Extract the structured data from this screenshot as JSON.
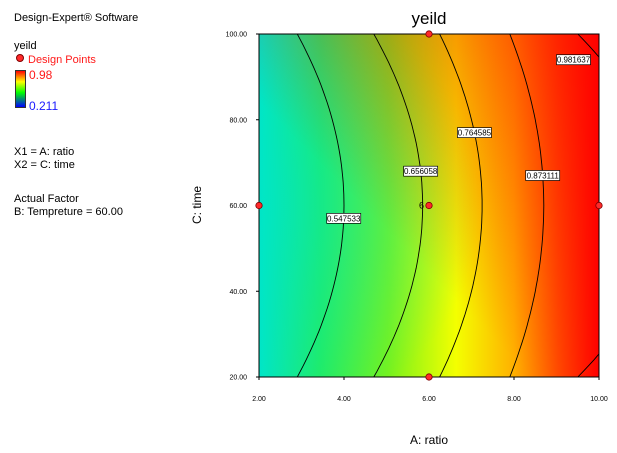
{
  "sidebar": {
    "software": "Design-Expert® Software",
    "response_name": "yeild",
    "legend_label": "Design Points",
    "colorbar_high": "0.98",
    "colorbar_low": "0.211",
    "x1_def": "X1 = A: ratio",
    "x2_def": "X2 = C: time",
    "actual_factor_heading": "Actual Factor",
    "actual_factor_value": "B: Tempreture = 60.00"
  },
  "colors": {
    "design_point": "#ff2a2a",
    "low": "#00e5c8",
    "mid_low": "#33ee22",
    "mid": "#ffff00",
    "high": "#ff0000"
  },
  "chart_data": {
    "type": "contour",
    "title": "yeild",
    "xlabel": "A: ratio",
    "ylabel": "C: time",
    "xlim": [
      2.0,
      10.0
    ],
    "ylim": [
      20.0,
      100.0
    ],
    "x_ticks": [
      "2.00",
      "4.00",
      "6.00",
      "8.00",
      "10.00"
    ],
    "y_ticks": [
      "20.00",
      "40.00",
      "60.00",
      "80.00",
      "100.00"
    ],
    "response_range": [
      0.211,
      0.98
    ],
    "contour_levels": [
      {
        "level": 0.547533,
        "label": "0.547533",
        "x_at_center": 4.0,
        "x_at_edges": 2.9
      },
      {
        "level": 0.656058,
        "label": "0.656058",
        "x_at_center": 5.85,
        "x_at_edges": 4.7
      },
      {
        "level": 0.764585,
        "label": "0.764585",
        "x_at_center": 7.25,
        "x_at_edges": 6.25
      },
      {
        "level": 0.873111,
        "label": "0.873111",
        "x_at_center": 8.7,
        "x_at_edges": 7.9
      },
      {
        "level": 0.981637,
        "label": "0.981637",
        "x_at_center": 11.5,
        "x_at_edges": 9.5
      }
    ],
    "design_points": [
      {
        "x": 2.0,
        "y": 60.0
      },
      {
        "x": 6.0,
        "y": 100.0
      },
      {
        "x": 6.0,
        "y": 60.0,
        "label": "6"
      },
      {
        "x": 6.0,
        "y": 20.0
      },
      {
        "x": 10.0,
        "y": 60.0
      }
    ],
    "grid": false
  }
}
